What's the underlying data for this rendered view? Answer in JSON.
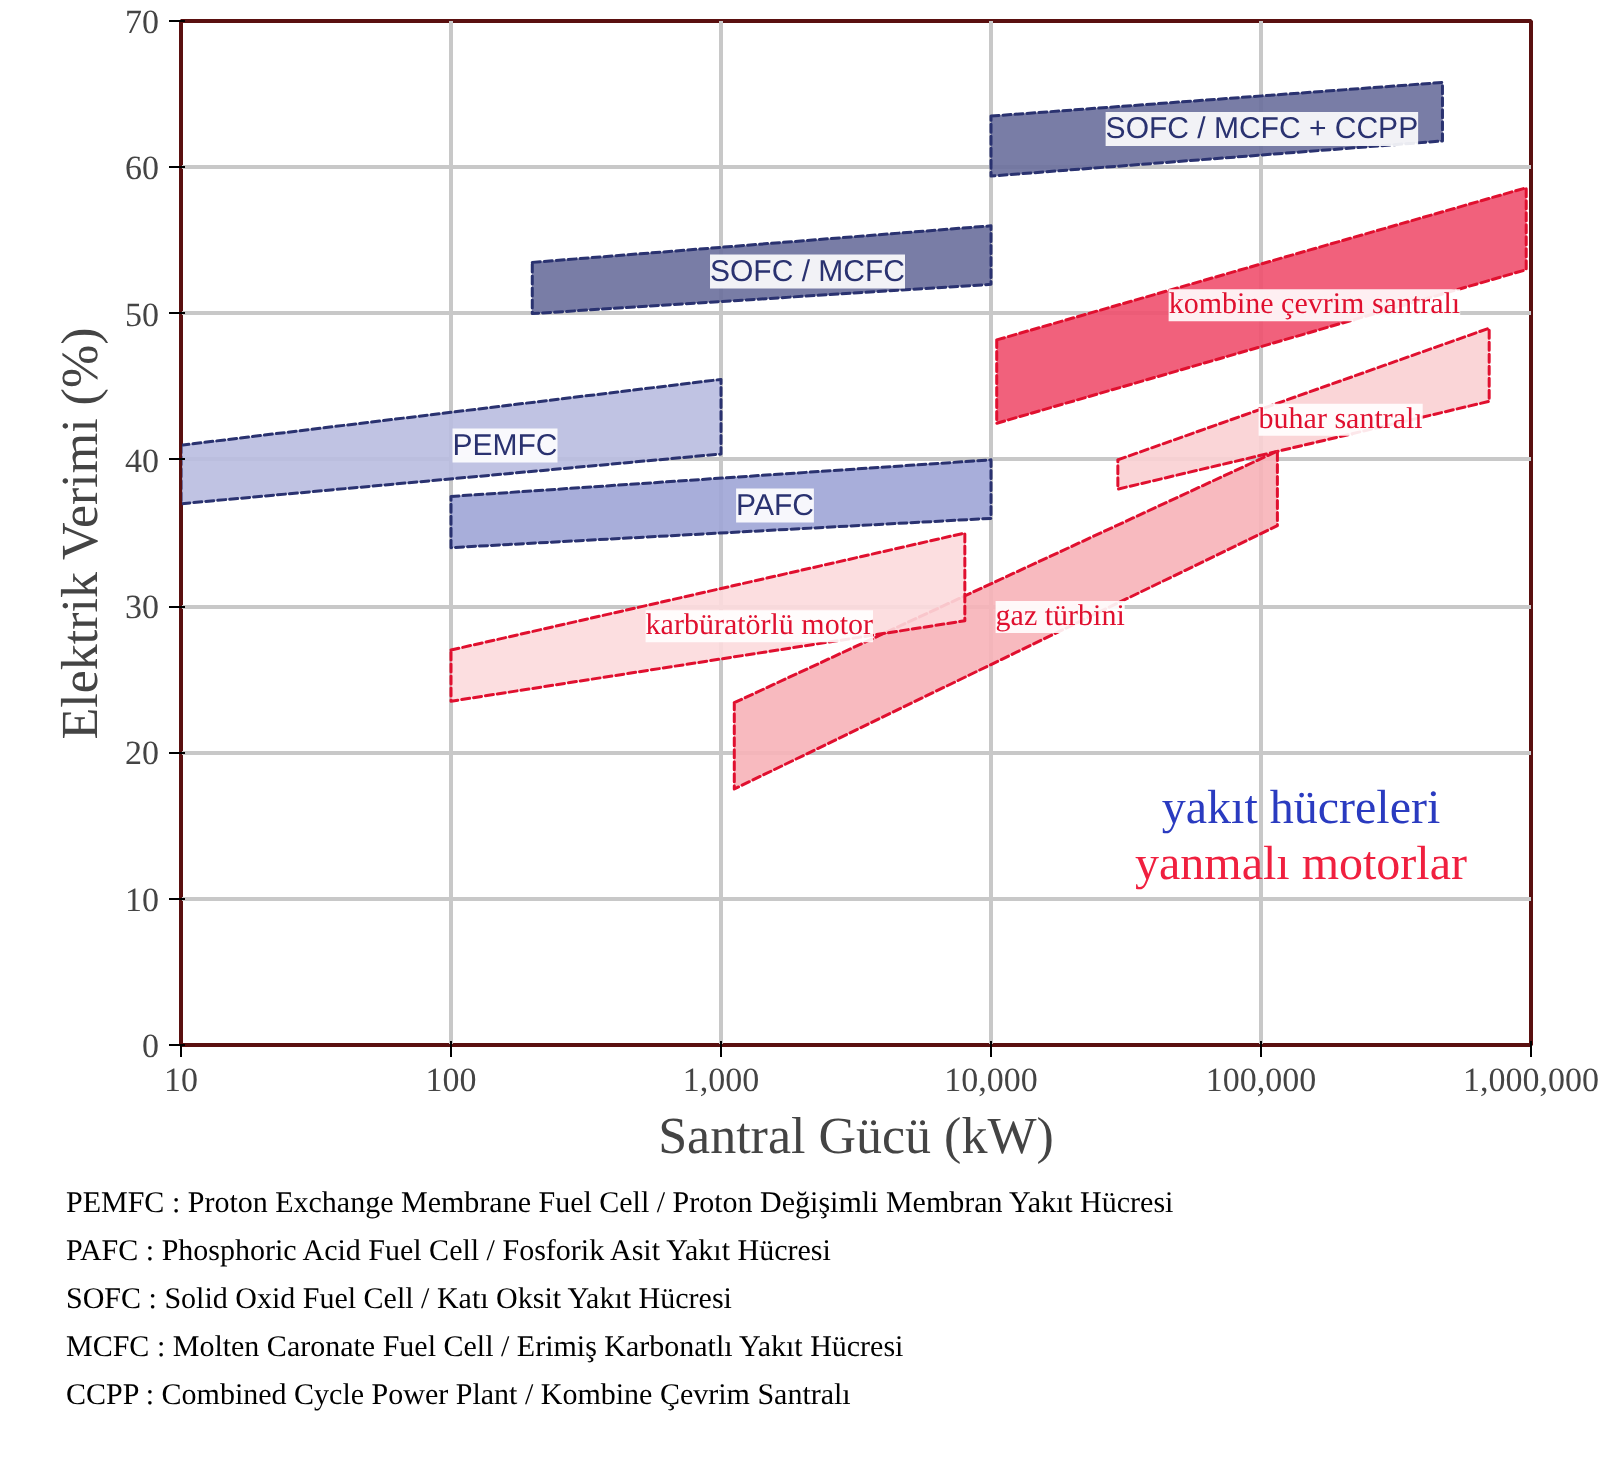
{
  "chart_data": {
    "type": "area",
    "xlabel": "Santral Gücü (kW)",
    "ylabel": "Elektrik Verimi (%)",
    "log": "x",
    "grid": true,
    "xlim": [
      10,
      1000000
    ],
    "ylim": [
      0,
      70
    ],
    "xticks": [
      10,
      100,
      {
        "value": 1000,
        "label": "1,000"
      },
      {
        "value": 10000,
        "label": "10,000"
      },
      {
        "value": 100000,
        "label": "100,000"
      },
      {
        "value": 1000000,
        "label": "1,000,000"
      }
    ],
    "yticks": [
      0,
      10,
      20,
      30,
      40,
      50,
      60,
      70
    ],
    "series": [
      {
        "name": "PEMFC",
        "color": "#b9bde0",
        "x": [
          10,
          1000,
          1000,
          10
        ],
        "values": [
          41,
          45.5,
          40.4,
          37
        ]
      },
      {
        "name": "PAFC",
        "color": "#9ea5d6",
        "x": [
          100,
          10000,
          10000,
          100
        ],
        "values": [
          37.5,
          40,
          36,
          34
        ]
      },
      {
        "name": "SOFC / MCFC",
        "color": "#6a6f9c",
        "x": [
          200,
          10000,
          10000,
          200
        ],
        "values": [
          53.5,
          56,
          52,
          50
        ]
      },
      {
        "name": "SOFC / MCFC + CCPP",
        "color": "#6a6f9c",
        "x": [
          10000,
          470000,
          470000,
          10000
        ],
        "values": [
          63.5,
          65.8,
          61.8,
          59.4
        ]
      },
      {
        "name": "kombine çevrim santralı",
        "color": "#f0506e",
        "x": [
          10500,
          960000,
          960000,
          10500
        ],
        "values": [
          48.2,
          58.6,
          53,
          42.5
        ]
      },
      {
        "name": "buhar santralı",
        "color": "#fad0d3",
        "x": [
          29500,
          700000,
          700000,
          29500
        ],
        "values": [
          40,
          49,
          44,
          38
        ]
      },
      {
        "name": "gaz türbini",
        "color": "#f7b3b8",
        "x": [
          1120,
          115000,
          115000,
          1120
        ],
        "values": [
          23.4,
          40.6,
          35.5,
          17.5
        ]
      },
      {
        "name": "karbüratörlü motor",
        "color": "#fcdadd",
        "x": [
          100,
          8000,
          8000,
          100
        ],
        "values": [
          27,
          35,
          29,
          23.5
        ]
      }
    ],
    "annotations": [
      "yakıt hücreleri",
      "yanmalı motorlar",
      "PEMFC : Proton Exchange Membrane Fuel Cell / Proton Değişimli Membran Yakıt Hücresi",
      "PAFC : Phosphoric Acid Fuel Cell / Fosforik Asit Yakıt Hücresi",
      "SOFC : Solid Oxid Fuel Cell / Katı Oksit Yakıt Hücresi",
      "MCFC : Molten Caronate Fuel Cell / Erimiş Karbonatlı Yakıt Hücresi",
      "CCPP : Combined Cycle Power Plant / Kombine Çevrim Santralı"
    ]
  }
}
